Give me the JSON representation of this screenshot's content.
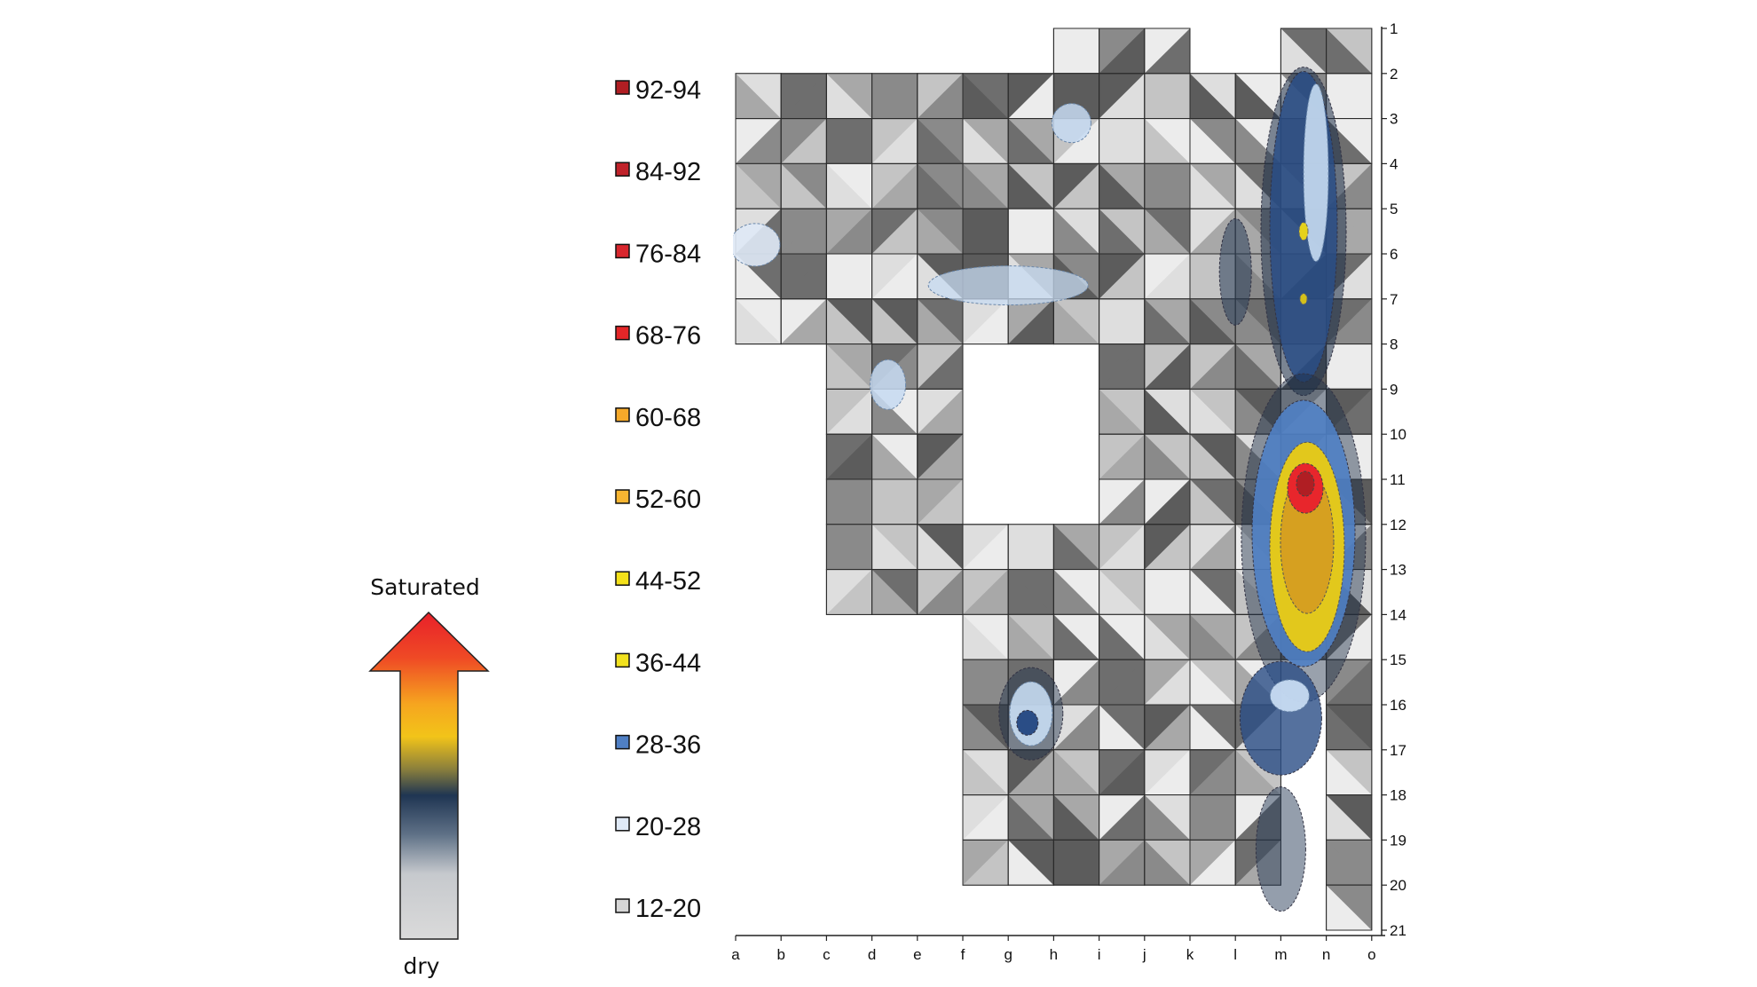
{
  "chart_data": {
    "type": "heatmap",
    "title": "",
    "columns": [
      "a",
      "b",
      "c",
      "d",
      "e",
      "f",
      "g",
      "h",
      "i",
      "j",
      "k",
      "l",
      "m",
      "n",
      "o"
    ],
    "rows": [
      "1",
      "2",
      "3",
      "4",
      "5",
      "6",
      "7",
      "8",
      "9",
      "10",
      "11",
      "12",
      "13",
      "14",
      "15",
      "16",
      "17",
      "18",
      "19",
      "20",
      "21"
    ],
    "legend": {
      "position": "left",
      "entries": [
        {
          "label": "92-94",
          "color": "#b01e23"
        },
        {
          "label": "84-92",
          "color": "#c0222a"
        },
        {
          "label": "76-84",
          "color": "#d8262d"
        },
        {
          "label": "68-76",
          "color": "#e42628"
        },
        {
          "label": "60-68",
          "color": "#f5a92a"
        },
        {
          "label": "52-60",
          "color": "#f7b531"
        },
        {
          "label": "44-52",
          "color": "#f4e11a"
        },
        {
          "label": "36-44",
          "color": "#f2e21f"
        },
        {
          "label": "28-36",
          "color": "#4f7fc4"
        },
        {
          "label": "20-28",
          "color": "#dfe9f6"
        },
        {
          "label": "12-20",
          "color": "#d6d6d6"
        }
      ]
    },
    "scale_arrow": {
      "top_label": "Saturated",
      "bottom_label": "dry"
    },
    "hotspots": [
      {
        "column": "m",
        "row_from": 9,
        "row_to": 14,
        "peak_row": 11,
        "peak_range": "92-94"
      },
      {
        "column": "m",
        "row_from": 2,
        "row_to": 8,
        "peak_row": 5,
        "peak_range": "44-52"
      },
      {
        "column": "l",
        "row_from": 15,
        "row_to": 17,
        "peak_row": 16,
        "peak_range": "28-36"
      },
      {
        "column": "g",
        "row_from": 15,
        "row_to": 17,
        "peak_row": 16,
        "peak_range": "28-36"
      }
    ]
  }
}
